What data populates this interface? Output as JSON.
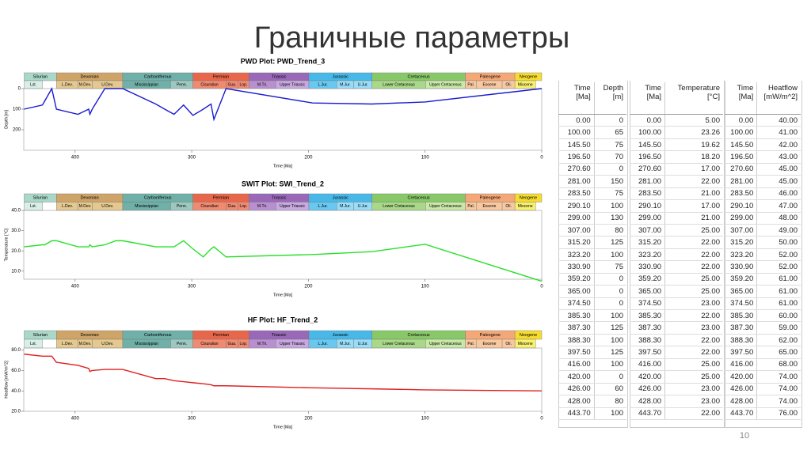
{
  "title": "Граничные параметры",
  "page_number": "10",
  "stratigraphy": {
    "periods": [
      "Silurian",
      "Devonian",
      "Carboniferous",
      "Permian",
      "Triassic",
      "Jurassic",
      "Cretaceous",
      "Paleogene",
      "Neogene"
    ],
    "epochs": [
      "Lst.",
      "L.Dev.",
      "M.Dev.",
      "U.Dev.",
      "Mississippian",
      "Penn.",
      "Cisuralian",
      "Gua.",
      "Lop.",
      "M.Tri.",
      "Upper Triassic",
      "L.Jur.",
      "M.Jur.",
      "U.Jur.",
      "Lower Cretaceous",
      "Upper Cretaceous",
      "Pal.",
      "Eocene",
      "Oli.",
      "Miocene"
    ]
  },
  "chart_data": [
    {
      "type": "line",
      "title": "PWD Plot: PWD_Trend_3",
      "x_label": "Time [Ma]",
      "y_label": "Depth [m]",
      "x": [
        0,
        100,
        145.5,
        196.5,
        270.6,
        281,
        283.5,
        290.1,
        299,
        307,
        315.2,
        323.2,
        330.9,
        359.2,
        365,
        374.5,
        385.3,
        387.3,
        388.3,
        397.5,
        416,
        420,
        426,
        428,
        443.7
      ],
      "series": [
        {
          "color": "#1a1ad0",
          "values": [
            0,
            65,
            75,
            70,
            0,
            150,
            75,
            100,
            130,
            80,
            125,
            100,
            75,
            0,
            0,
            0,
            100,
            125,
            100,
            125,
            100,
            0,
            60,
            80,
            100
          ]
        }
      ],
      "xlim": [
        444,
        0
      ],
      "xticks": [
        400,
        300,
        200,
        100,
        0
      ],
      "ylim": [
        300,
        0
      ],
      "yticks": [
        0,
        100,
        200
      ]
    },
    {
      "type": "line",
      "title": "SWIT Plot: SWI_Trend_2",
      "x_label": "Time [Ma]",
      "y_label": "Temperature [°C]",
      "x": [
        0,
        100,
        145.5,
        196.5,
        270.6,
        281,
        283.5,
        290.1,
        299,
        307,
        315.2,
        323.2,
        330.9,
        359.2,
        365,
        374.5,
        385.3,
        387.3,
        388.3,
        397.5,
        416,
        420,
        426,
        428,
        443.7
      ],
      "series": [
        {
          "color": "#28e028",
          "values": [
            5,
            23.26,
            19.62,
            18.2,
            17,
            22,
            21,
            17,
            21,
            25,
            22,
            22,
            22,
            25,
            25,
            23,
            22,
            23,
            22,
            22,
            25,
            25,
            23,
            23,
            22
          ]
        }
      ],
      "xlim": [
        444,
        0
      ],
      "xticks": [
        400,
        300,
        200,
        100,
        0
      ],
      "ylim": [
        6,
        40
      ],
      "yticks": [
        {
          "value": 10,
          "label": "10.0"
        },
        {
          "value": 20,
          "label": "20.0"
        },
        {
          "value": 30,
          "label": "30.0"
        },
        {
          "value": 40,
          "label": "40.0"
        }
      ]
    },
    {
      "type": "line",
      "title": "HF Plot: HF_Trend_2",
      "x_label": "Time [Ma]",
      "y_label": "Heatflow [mW/m^2]",
      "x": [
        0,
        100,
        145.5,
        196.5,
        270.6,
        281,
        283.5,
        290.1,
        299,
        307,
        315.2,
        323.2,
        330.9,
        359.2,
        365,
        374.5,
        385.3,
        387.3,
        388.3,
        397.5,
        416,
        420,
        426,
        428,
        443.7
      ],
      "series": [
        {
          "color": "#e02020",
          "values": [
            40,
            41,
            42,
            43,
            45,
            45,
            46,
            47,
            48,
            49,
            50,
            52,
            52,
            61,
            61,
            61,
            60,
            59,
            62,
            65,
            68,
            74,
            74,
            74,
            76
          ]
        }
      ],
      "xlim": [
        444,
        0
      ],
      "xticks": [
        400,
        300,
        200,
        100,
        0
      ],
      "ylim": [
        20,
        82
      ],
      "yticks": [
        {
          "value": 20,
          "label": "20.0"
        },
        {
          "value": 40,
          "label": "40.0"
        },
        {
          "value": 60,
          "label": "60.0"
        },
        {
          "value": 80,
          "label": "80.0"
        }
      ]
    }
  ],
  "tables": [
    {
      "headers": [
        [
          "Time",
          "[Ma]"
        ],
        [
          "Depth",
          "[m]"
        ]
      ],
      "rows": [
        [
          "0.00",
          "0"
        ],
        [
          "100.00",
          "65"
        ],
        [
          "145.50",
          "75"
        ],
        [
          "196.50",
          "70"
        ],
        [
          "270.60",
          "0"
        ],
        [
          "281.00",
          "150"
        ],
        [
          "283.50",
          "75"
        ],
        [
          "290.10",
          "100"
        ],
        [
          "299.00",
          "130"
        ],
        [
          "307.00",
          "80"
        ],
        [
          "315.20",
          "125"
        ],
        [
          "323.20",
          "100"
        ],
        [
          "330.90",
          "75"
        ],
        [
          "359.20",
          "0"
        ],
        [
          "365.00",
          "0"
        ],
        [
          "374.50",
          "0"
        ],
        [
          "385.30",
          "100"
        ],
        [
          "387.30",
          "125"
        ],
        [
          "388.30",
          "100"
        ],
        [
          "397.50",
          "125"
        ],
        [
          "416.00",
          "100"
        ],
        [
          "420.00",
          "0"
        ],
        [
          "426.00",
          "60"
        ],
        [
          "428.00",
          "80"
        ],
        [
          "443.70",
          "100"
        ]
      ]
    },
    {
      "headers": [
        [
          "Time",
          "[Ma]"
        ],
        [
          "Temperature",
          "[°C]"
        ]
      ],
      "rows": [
        [
          "0.00",
          "5.00"
        ],
        [
          "100.00",
          "23.26"
        ],
        [
          "145.50",
          "19.62"
        ],
        [
          "196.50",
          "18.20"
        ],
        [
          "270.60",
          "17.00"
        ],
        [
          "281.00",
          "22.00"
        ],
        [
          "283.50",
          "21.00"
        ],
        [
          "290.10",
          "17.00"
        ],
        [
          "299.00",
          "21.00"
        ],
        [
          "307.00",
          "25.00"
        ],
        [
          "315.20",
          "22.00"
        ],
        [
          "323.20",
          "22.00"
        ],
        [
          "330.90",
          "22.00"
        ],
        [
          "359.20",
          "25.00"
        ],
        [
          "365.00",
          "25.00"
        ],
        [
          "374.50",
          "23.00"
        ],
        [
          "385.30",
          "22.00"
        ],
        [
          "387.30",
          "23.00"
        ],
        [
          "388.30",
          "22.00"
        ],
        [
          "397.50",
          "22.00"
        ],
        [
          "416.00",
          "25.00"
        ],
        [
          "420.00",
          "25.00"
        ],
        [
          "426.00",
          "23.00"
        ],
        [
          "428.00",
          "23.00"
        ],
        [
          "443.70",
          "22.00"
        ]
      ]
    },
    {
      "headers": [
        [
          "Time",
          "[Ma]"
        ],
        [
          "Heatflow",
          "[mW/m^2]"
        ]
      ],
      "rows": [
        [
          "0.00",
          "40.00"
        ],
        [
          "100.00",
          "41.00"
        ],
        [
          "145.50",
          "42.00"
        ],
        [
          "196.50",
          "43.00"
        ],
        [
          "270.60",
          "45.00"
        ],
        [
          "281.00",
          "45.00"
        ],
        [
          "283.50",
          "46.00"
        ],
        [
          "290.10",
          "47.00"
        ],
        [
          "299.00",
          "48.00"
        ],
        [
          "307.00",
          "49.00"
        ],
        [
          "315.20",
          "50.00"
        ],
        [
          "323.20",
          "52.00"
        ],
        [
          "330.90",
          "52.00"
        ],
        [
          "359.20",
          "61.00"
        ],
        [
          "365.00",
          "61.00"
        ],
        [
          "374.50",
          "61.00"
        ],
        [
          "385.30",
          "60.00"
        ],
        [
          "387.30",
          "59.00"
        ],
        [
          "388.30",
          "62.00"
        ],
        [
          "397.50",
          "65.00"
        ],
        [
          "416.00",
          "68.00"
        ],
        [
          "420.00",
          "74.00"
        ],
        [
          "426.00",
          "74.00"
        ],
        [
          "428.00",
          "74.00"
        ],
        [
          "443.70",
          "76.00"
        ]
      ]
    }
  ]
}
